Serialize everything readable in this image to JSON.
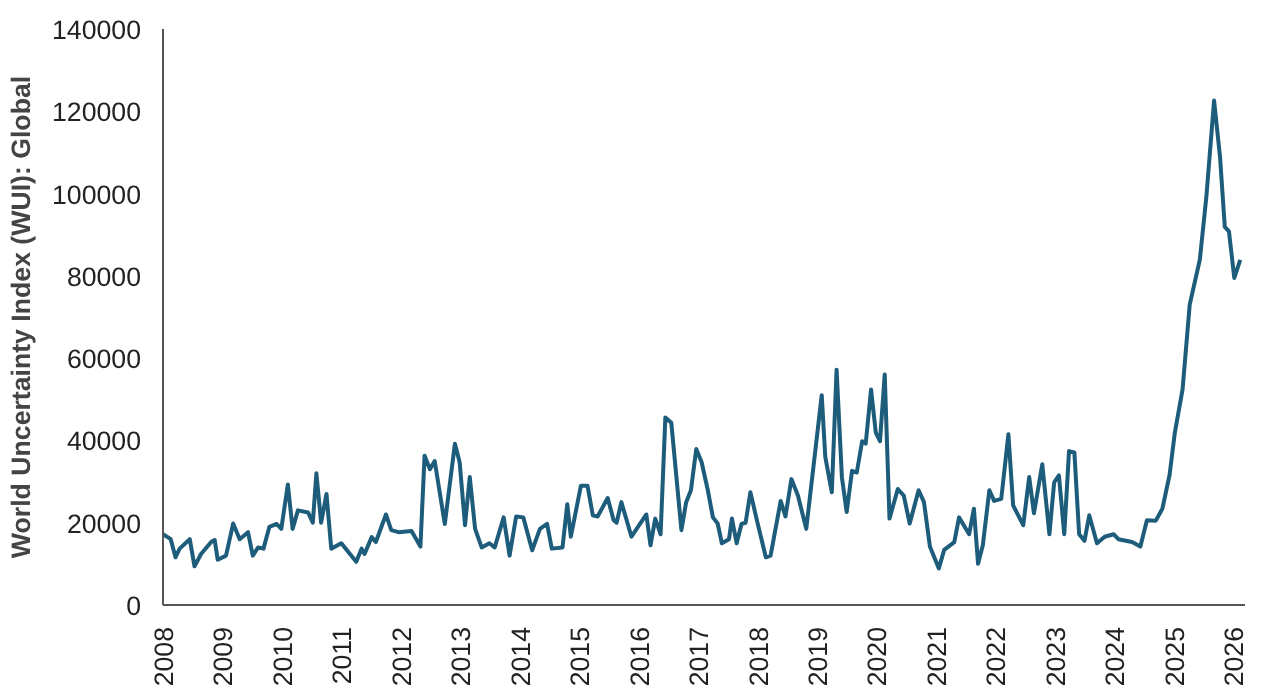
{
  "chart_data": {
    "type": "line",
    "ylabel": "World Uncertainty Index (WUI): Global",
    "xlim": [
      2008,
      2026.2
    ],
    "xticks": [
      2008,
      2009,
      2010,
      2011,
      2012,
      2013,
      2014,
      2015,
      2016,
      2017,
      2018,
      2019,
      2020,
      2021,
      2022,
      2023,
      2024,
      2025,
      2026
    ],
    "ylim": [
      0,
      140000
    ],
    "yticks": [
      0,
      20000,
      40000,
      60000,
      80000,
      100000,
      120000,
      140000
    ],
    "grid": false,
    "series": [
      {
        "color": "#1d5c7a",
        "x": [
          2008.0,
          2008.13,
          2008.21,
          2008.28,
          2008.45,
          2008.53,
          2008.64,
          2008.81,
          2008.87,
          2008.92,
          2009.06,
          2009.18,
          2009.29,
          2009.43,
          2009.51,
          2009.6,
          2009.69,
          2009.79,
          2009.91,
          2009.99,
          2010.1,
          2010.18,
          2010.27,
          2010.44,
          2010.52,
          2010.58,
          2010.66,
          2010.75,
          2010.83,
          2011.0,
          2011.25,
          2011.34,
          2011.39,
          2011.51,
          2011.58,
          2011.75,
          2011.84,
          2011.96,
          2012.18,
          2012.33,
          2012.4,
          2012.49,
          2012.57,
          2012.74,
          2012.91,
          2012.99,
          2013.08,
          2013.16,
          2013.25,
          2013.36,
          2013.49,
          2013.58,
          2013.73,
          2013.83,
          2013.94,
          2014.06,
          2014.21,
          2014.34,
          2014.46,
          2014.54,
          2014.72,
          2014.8,
          2014.86,
          2015.03,
          2015.14,
          2015.23,
          2015.31,
          2015.48,
          2015.58,
          2015.63,
          2015.71,
          2015.88,
          2016.13,
          2016.2,
          2016.28,
          2016.37,
          2016.45,
          2016.55,
          2016.72,
          2016.8,
          2016.88,
          2016.97,
          2017.06,
          2017.16,
          2017.25,
          2017.33,
          2017.4,
          2017.52,
          2017.57,
          2017.65,
          2017.73,
          2017.8,
          2017.88,
          2018.0,
          2018.14,
          2018.22,
          2018.39,
          2018.47,
          2018.57,
          2018.68,
          2018.82,
          2019.08,
          2019.14,
          2019.25,
          2019.33,
          2019.42,
          2019.5,
          2019.59,
          2019.67,
          2019.76,
          2019.82,
          2019.91,
          2019.99,
          2020.06,
          2020.14,
          2020.22,
          2020.36,
          2020.46,
          2020.56,
          2020.71,
          2020.8,
          2020.9,
          2021.05,
          2021.14,
          2021.31,
          2021.39,
          2021.56,
          2021.64,
          2021.71,
          2021.79,
          2021.9,
          2021.98,
          2022.1,
          2022.22,
          2022.3,
          2022.47,
          2022.57,
          2022.65,
          2022.79,
          2022.91,
          2022.99,
          2023.07,
          2023.16,
          2023.24,
          2023.33,
          2023.41,
          2023.5,
          2023.58,
          2023.71,
          2023.84,
          2023.99,
          2024.07,
          2024.3,
          2024.44,
          2024.55,
          2024.7,
          2024.81,
          2024.93,
          2025.02,
          2025.15,
          2025.27,
          2025.44,
          2025.55,
          2025.68,
          2025.78,
          2025.86,
          2025.93,
          2026.02,
          2026.12
        ],
        "values": [
          17200,
          16000,
          11600,
          13700,
          16000,
          9400,
          12400,
          15300,
          15800,
          11000,
          12000,
          19800,
          16000,
          17700,
          12000,
          14000,
          13700,
          19000,
          19700,
          18500,
          29300,
          18500,
          23000,
          22500,
          20000,
          32000,
          20000,
          27000,
          13700,
          15000,
          10500,
          13700,
          12400,
          16500,
          15300,
          22000,
          18200,
          17700,
          18000,
          14200,
          36300,
          33000,
          35000,
          19700,
          39200,
          34700,
          19400,
          31100,
          18500,
          14000,
          15000,
          14000,
          21300,
          12000,
          21500,
          21300,
          13300,
          18500,
          19700,
          13700,
          14000,
          24500,
          16600,
          29000,
          29000,
          21800,
          21500,
          26000,
          20600,
          20000,
          25000,
          16600,
          22000,
          14500,
          21000,
          17200,
          45600,
          44300,
          18200,
          25000,
          27900,
          37900,
          34700,
          28200,
          21300,
          19800,
          15000,
          16000,
          21000,
          15000,
          19700,
          20000,
          27400,
          20000,
          11600,
          12000,
          25300,
          21500,
          30600,
          26600,
          18500,
          51000,
          36000,
          27400,
          57200,
          31000,
          22600,
          32600,
          32200,
          39800,
          39200,
          52400,
          41900,
          39800,
          56000,
          21000,
          28200,
          26600,
          19800,
          27900,
          25000,
          14200,
          8900,
          13400,
          15300,
          21300,
          17200,
          23400,
          10000,
          14500,
          27900,
          25300,
          25800,
          41500,
          24200,
          19400,
          31100,
          22300,
          34200,
          17200,
          29800,
          31500,
          17200,
          37400,
          37100,
          17200,
          15600,
          21800,
          15000,
          16600,
          17200,
          16000,
          15300,
          14200,
          20600,
          20500,
          23400,
          31500,
          41900,
          52400,
          73000,
          83900,
          99200,
          122600,
          108900,
          91900,
          90800,
          79500,
          83900
        ]
      }
    ]
  }
}
